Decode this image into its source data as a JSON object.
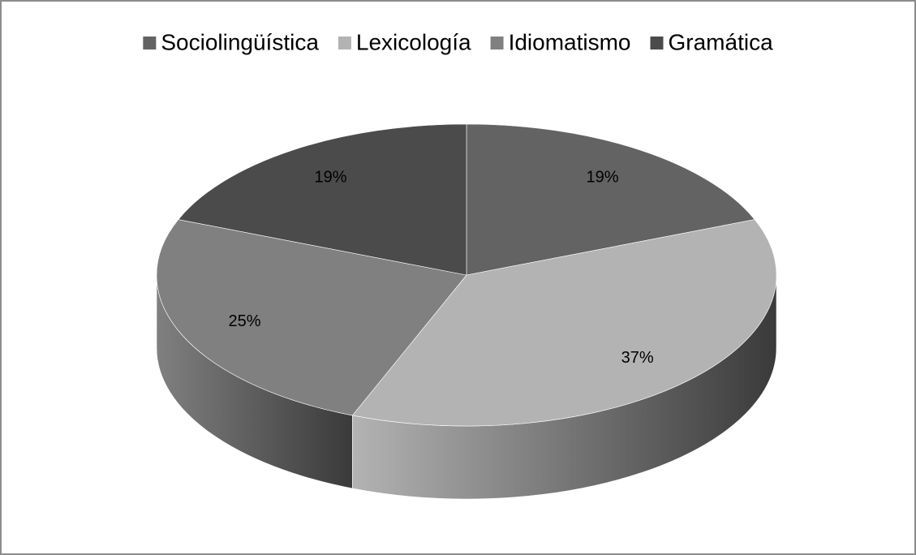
{
  "chart_data": {
    "type": "pie3d",
    "categories": [
      "Sociolingüística",
      "Lexicología",
      "Idiomatismo",
      "Gramática"
    ],
    "values": [
      19,
      37,
      25,
      19
    ],
    "value_labels": [
      "19%",
      "37%",
      "25%",
      "19%"
    ],
    "colors": [
      "#636363",
      "#b3b3b3",
      "#808080",
      "#4b4b4b"
    ],
    "legend": "top"
  }
}
